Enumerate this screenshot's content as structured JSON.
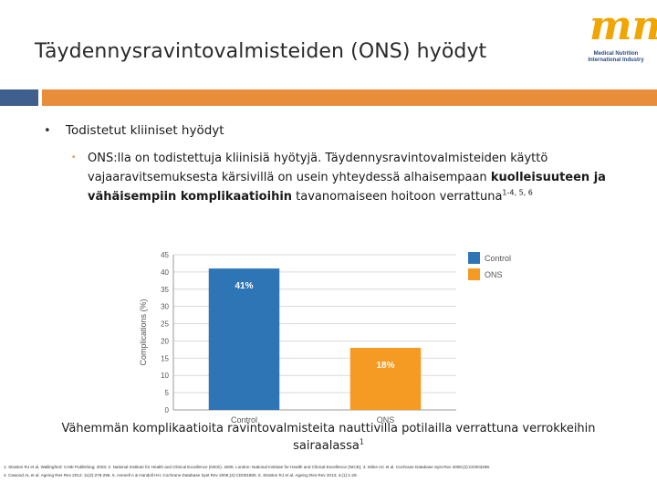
{
  "slide": {
    "title": "Täydennysravintovalmisteiden (ONS) hyödyt",
    "logo": {
      "mark": "mni",
      "lines": [
        "Medical Nutrition",
        "International Industry"
      ]
    },
    "bullet_level1": "Todistetut kliiniset hyödyt",
    "bullet_level2": {
      "text_plain": "ONS:lla on todistettuja kliinisiä hyötyjä. Täydennysravintovalmisteiden käyttö vajaaravitsemuksesta kärsivillä on usein yhteydessä alhaisempaan ",
      "text_bold": "kuolleisuuteen ja vähäisempiin komplikaatioihin",
      "text_after": " tavanomaiseen hoitoon verrattuna",
      "superscript": "1-4, 5, 6"
    },
    "caption": {
      "text": "Vähemmän komplikaatioita ravintovalmisteita nauttivilla potilailla verrattuna verrokkeihin sairaalassa",
      "superscript": "1"
    },
    "references": [
      "1. Stratton RJ et al. Wallingford: CABI Publishing; 2003; 2. National Institute for Health and Clinical Excellence (NICE). 2006. London: National Institute for Health and Clinical Excellence (NICE); 3. Milne AC et al. Cochrane Database Syst Rev 2009;(2):CD003288.",
      "4. Cawood AL et al. Ageing Res Rev 2012; 11(2):278-296. 5. Avenell A & Handoll HH. Cochrane Database Syst Rev 2006;(4):CD001880. 6. Stratton RJ et al. Ageing Res Rev 2013; 4;(1):1-29."
    ]
  },
  "colors": {
    "control": "#2e75b6",
    "ons": "#f59a23",
    "band_blue": "#3f5f8f",
    "band_orange": "#e88e3a",
    "logo_orange": "#f0a500",
    "logo_blue": "#2b4c7e"
  },
  "chart_data": {
    "type": "bar",
    "categories": [
      "Control",
      "ONS"
    ],
    "values": [
      41,
      18
    ],
    "data_labels": [
      "41%",
      "18%"
    ],
    "ylabel": "Complications (%)",
    "ylim": [
      0,
      45
    ],
    "yticks": [
      0,
      5,
      10,
      15,
      20,
      25,
      30,
      35,
      40,
      45
    ],
    "legend": [
      "Control",
      "ONS"
    ],
    "legend_position": "right",
    "grid": true
  }
}
